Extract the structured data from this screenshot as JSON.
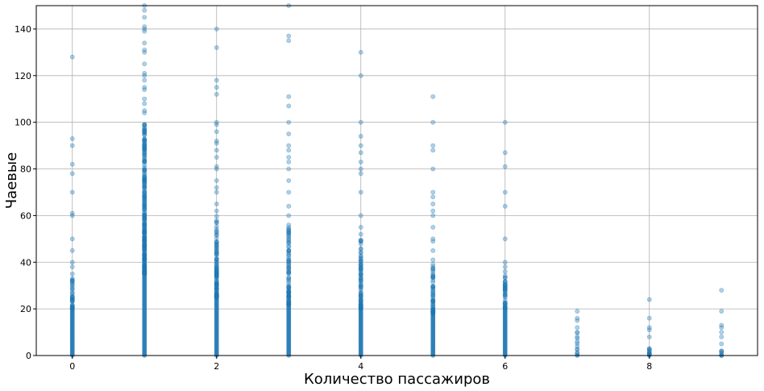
{
  "chart_data": {
    "type": "scatter",
    "title": "",
    "xlabel": "Количество пассажиров",
    "ylabel": "Чаевые",
    "xlim": [
      -0.5,
      9.5
    ],
    "ylim": [
      0,
      150
    ],
    "x_ticks": [
      0,
      2,
      4,
      6,
      8
    ],
    "y_ticks": [
      0,
      20,
      40,
      60,
      80,
      100,
      120,
      140
    ],
    "grid": true,
    "legend": "none",
    "marker_color": "#1f77b4",
    "marker_opacity": 0.35,
    "columns": [
      {
        "x": 0,
        "dense_max": 20,
        "mid_max": 33,
        "mid_count": 30,
        "points": [
          28,
          29,
          30,
          31,
          32,
          33,
          35,
          38,
          40,
          45,
          50,
          60,
          61,
          70,
          78,
          82,
          90,
          93,
          128
        ]
      },
      {
        "x": 1,
        "dense_max": 35,
        "mid_max": 100,
        "mid_count": 280,
        "points": [
          104,
          105,
          108,
          110,
          114,
          115,
          118,
          120,
          121,
          125,
          130,
          131,
          134,
          139,
          140,
          141,
          145,
          148,
          150
        ]
      },
      {
        "x": 2,
        "dense_max": 25,
        "mid_max": 60,
        "mid_count": 110,
        "points": [
          62,
          65,
          70,
          72,
          75,
          80,
          81,
          85,
          88,
          91,
          92,
          96,
          99,
          100,
          112,
          115,
          118,
          132,
          140
        ]
      },
      {
        "x": 3,
        "dense_max": 22,
        "mid_max": 55,
        "mid_count": 90,
        "points": [
          56,
          60,
          64,
          70,
          75,
          80,
          83,
          85,
          88,
          90,
          95,
          100,
          107,
          111,
          135,
          137,
          150
        ]
      },
      {
        "x": 4,
        "dense_max": 20,
        "mid_max": 50,
        "mid_count": 80,
        "points": [
          52,
          55,
          60,
          70,
          78,
          80,
          83,
          87,
          90,
          94,
          100,
          120,
          130
        ]
      },
      {
        "x": 5,
        "dense_max": 18,
        "mid_max": 40,
        "mid_count": 60,
        "points": [
          41,
          45,
          49,
          50,
          55,
          60,
          62,
          65,
          68,
          70,
          80,
          88,
          90,
          100,
          111
        ]
      },
      {
        "x": 6,
        "dense_max": 20,
        "mid_max": 35,
        "mid_count": 40,
        "points": [
          36,
          38,
          40,
          50,
          64,
          70,
          81,
          87,
          100
        ]
      },
      {
        "x": 7,
        "dense_max": 0,
        "mid_max": 11,
        "mid_count": 8,
        "points": [
          0,
          1,
          4,
          6,
          10,
          12,
          15,
          16,
          19
        ]
      },
      {
        "x": 8,
        "dense_max": 0,
        "mid_max": 3,
        "mid_count": 8,
        "points": [
          0,
          1,
          2,
          3,
          8,
          11,
          12,
          16,
          24
        ]
      },
      {
        "x": 9,
        "dense_max": 0,
        "mid_max": 2,
        "mid_count": 4,
        "points": [
          0,
          1,
          2,
          5,
          8,
          10,
          12,
          13,
          19,
          28
        ]
      }
    ]
  }
}
